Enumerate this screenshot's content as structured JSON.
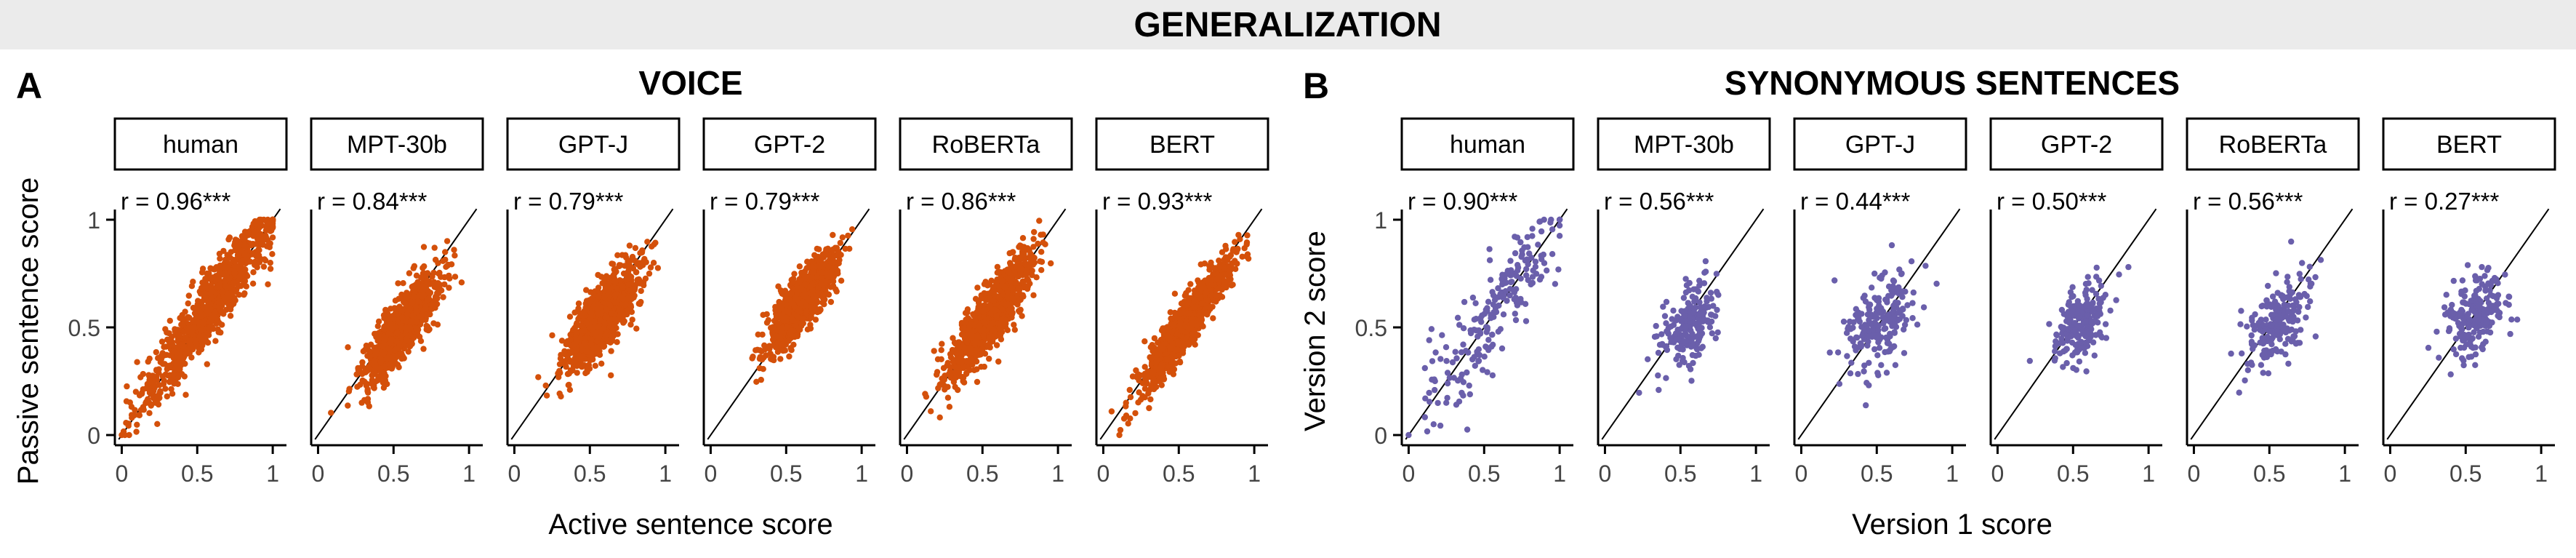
{
  "figure": {
    "title": "GENERALIZATION",
    "title_bar_color": "#ebebeb"
  },
  "panels": [
    {
      "letter": "A",
      "title": "VOICE",
      "xlabel": "Active sentence score",
      "ylabel": "Passive sentence score",
      "point_color": "#d4500a"
    },
    {
      "letter": "B",
      "title": "SYNONYMOUS SENTENCES",
      "xlabel": "Version 1 score",
      "ylabel": "Version 2 score",
      "point_color": "#6a5fab"
    }
  ],
  "chart_data": [
    {
      "type": "scatter",
      "panel": "A",
      "title": "VOICE",
      "xlabel": "Active sentence score",
      "ylabel": "Passive sentence score",
      "xlim": [
        0,
        1
      ],
      "ylim": [
        0,
        1
      ],
      "xticks": [
        "0",
        "0.5",
        "1"
      ],
      "yticks": [
        "0",
        "0.5",
        "1"
      ],
      "reference_line": "y = x",
      "grid": false,
      "facets": [
        {
          "label": "human",
          "r_text": "r = 0.96***",
          "r": 0.96,
          "n": 900,
          "center": [
            0.62,
            0.63
          ],
          "spread": 0.27
        },
        {
          "label": "MPT-30b",
          "r_text": "r = 0.84***",
          "r": 0.84,
          "n": 900,
          "center": [
            0.55,
            0.5
          ],
          "spread": 0.13
        },
        {
          "label": "GPT-J",
          "r_text": "r = 0.79***",
          "r": 0.79,
          "n": 900,
          "center": [
            0.58,
            0.55
          ],
          "spread": 0.13
        },
        {
          "label": "GPT-2",
          "r_text": "r = 0.79***",
          "r": 0.79,
          "n": 900,
          "center": [
            0.6,
            0.62
          ],
          "spread": 0.11
        },
        {
          "label": "RoBERTa",
          "r_text": "r = 0.86***",
          "r": 0.86,
          "n": 900,
          "center": [
            0.55,
            0.55
          ],
          "spread": 0.14
        },
        {
          "label": "BERT",
          "r_text": "r = 0.93***",
          "r": 0.93,
          "n": 900,
          "center": [
            0.55,
            0.52
          ],
          "spread": 0.16
        }
      ]
    },
    {
      "type": "scatter",
      "panel": "B",
      "title": "SYNONYMOUS SENTENCES",
      "xlabel": "Version 1 score",
      "ylabel": "Version 2 score",
      "xlim": [
        0,
        1
      ],
      "ylim": [
        0,
        1
      ],
      "xticks": [
        "0",
        "0.5",
        "1"
      ],
      "yticks": [
        "0",
        "0.5",
        "1"
      ],
      "reference_line": "y = x",
      "grid": false,
      "facets": [
        {
          "label": "human",
          "r_text": "r = 0.90***",
          "r": 0.9,
          "n": 210,
          "center": [
            0.62,
            0.62
          ],
          "spread": 0.27
        },
        {
          "label": "MPT-30b",
          "r_text": "r = 0.56***",
          "r": 0.56,
          "n": 210,
          "center": [
            0.55,
            0.5
          ],
          "spread": 0.11
        },
        {
          "label": "GPT-J",
          "r_text": "r = 0.44***",
          "r": 0.44,
          "n": 210,
          "center": [
            0.52,
            0.52
          ],
          "spread": 0.11
        },
        {
          "label": "GPT-2",
          "r_text": "r = 0.50***",
          "r": 0.5,
          "n": 210,
          "center": [
            0.55,
            0.52
          ],
          "spread": 0.09
        },
        {
          "label": "RoBERTa",
          "r_text": "r = 0.56***",
          "r": 0.56,
          "n": 210,
          "center": [
            0.55,
            0.52
          ],
          "spread": 0.11
        },
        {
          "label": "BERT",
          "r_text": "r = 0.27***",
          "r": 0.27,
          "n": 210,
          "center": [
            0.55,
            0.55
          ],
          "spread": 0.1
        }
      ]
    }
  ]
}
